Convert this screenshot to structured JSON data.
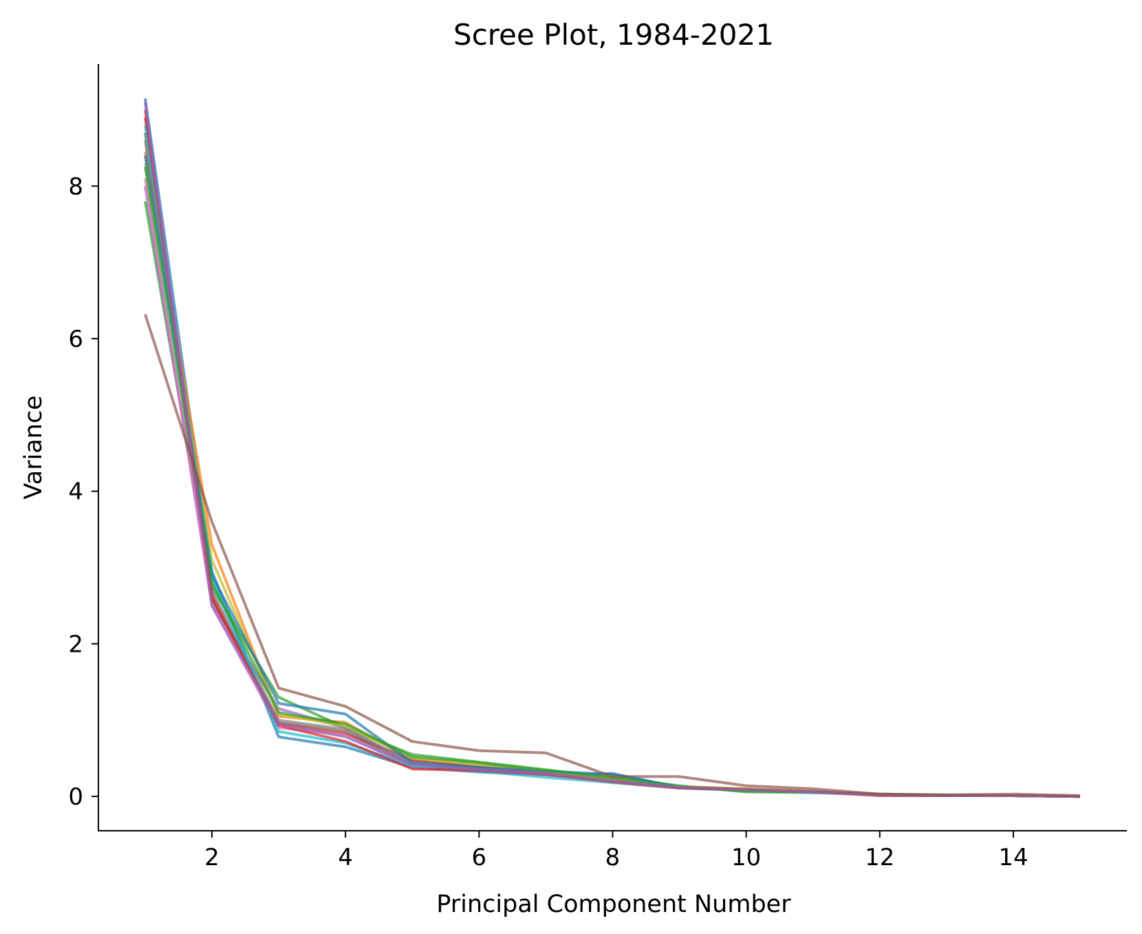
{
  "chart_data": {
    "type": "line",
    "title": "Scree Plot, 1984-2021",
    "xlabel": "Principal Component Number",
    "ylabel": "Variance",
    "x": [
      1,
      2,
      3,
      4,
      5,
      6,
      7,
      8,
      9,
      10,
      11,
      12,
      13,
      14,
      15
    ],
    "xticks": [
      2,
      4,
      6,
      8,
      10,
      12,
      14
    ],
    "yticks": [
      0,
      2,
      4,
      6,
      8
    ],
    "xlim": [
      0.3,
      15.7
    ],
    "ylim": [
      -0.45,
      9.6
    ],
    "grid": false,
    "legend": "none",
    "series": [
      {
        "color": "#1f77b4",
        "values": [
          9.15,
          2.95,
          0.78,
          0.65,
          0.38,
          0.32,
          0.28,
          0.3,
          0.12,
          0.08,
          0.06,
          0.02,
          0.01,
          0.01,
          0.0
        ]
      },
      {
        "color": "#ff7f0e",
        "values": [
          8.45,
          3.3,
          1.05,
          0.97,
          0.47,
          0.4,
          0.33,
          0.22,
          0.13,
          0.1,
          0.07,
          0.02,
          0.01,
          0.01,
          0.0
        ]
      },
      {
        "color": "#2ca02c",
        "values": [
          7.8,
          2.75,
          1.3,
          0.9,
          0.55,
          0.45,
          0.35,
          0.25,
          0.14,
          0.06,
          0.05,
          0.03,
          0.02,
          0.01,
          0.0
        ]
      },
      {
        "color": "#d62728",
        "values": [
          8.9,
          2.65,
          0.95,
          0.82,
          0.48,
          0.38,
          0.3,
          0.2,
          0.12,
          0.09,
          0.06,
          0.02,
          0.01,
          0.01,
          0.0
        ]
      },
      {
        "color": "#9467bd",
        "values": [
          8.0,
          2.55,
          1.15,
          0.9,
          0.42,
          0.36,
          0.3,
          0.21,
          0.12,
          0.09,
          0.06,
          0.02,
          0.01,
          0.01,
          0.0
        ]
      },
      {
        "color": "#8c564b",
        "values": [
          8.7,
          2.6,
          0.97,
          0.85,
          0.4,
          0.35,
          0.3,
          0.2,
          0.11,
          0.08,
          0.06,
          0.02,
          0.01,
          0.01,
          0.0
        ]
      },
      {
        "color": "#e377c2",
        "values": [
          8.1,
          2.5,
          0.9,
          0.8,
          0.38,
          0.33,
          0.28,
          0.2,
          0.12,
          0.09,
          0.06,
          0.02,
          0.01,
          0.01,
          0.0
        ]
      },
      {
        "color": "#7f7f7f",
        "values": [
          8.6,
          2.7,
          1.0,
          0.88,
          0.45,
          0.37,
          0.31,
          0.22,
          0.12,
          0.09,
          0.06,
          0.02,
          0.01,
          0.01,
          0.0
        ]
      },
      {
        "color": "#bcbd22",
        "values": [
          8.3,
          3.1,
          1.08,
          0.92,
          0.5,
          0.42,
          0.33,
          0.23,
          0.13,
          0.1,
          0.07,
          0.02,
          0.01,
          0.01,
          0.0
        ]
      },
      {
        "color": "#17becf",
        "values": [
          8.8,
          2.85,
          0.85,
          0.7,
          0.4,
          0.33,
          0.25,
          0.18,
          0.11,
          0.08,
          0.05,
          0.02,
          0.01,
          0.01,
          0.0
        ]
      },
      {
        "color": "#1f77b4",
        "values": [
          8.4,
          2.9,
          1.22,
          1.08,
          0.44,
          0.38,
          0.33,
          0.29,
          0.12,
          0.09,
          0.06,
          0.02,
          0.01,
          0.01,
          0.0
        ]
      },
      {
        "color": "#2ca02c",
        "values": [
          8.25,
          2.8,
          1.1,
          0.95,
          0.52,
          0.44,
          0.34,
          0.24,
          0.13,
          0.07,
          0.06,
          0.03,
          0.01,
          0.01,
          0.0
        ]
      },
      {
        "color": "#d62728",
        "values": [
          9.0,
          2.6,
          0.93,
          0.72,
          0.36,
          0.34,
          0.29,
          0.19,
          0.11,
          0.09,
          0.06,
          0.01,
          0.01,
          0.01,
          0.0
        ]
      },
      {
        "color": "#9467bd",
        "values": [
          9.1,
          2.5,
          0.95,
          0.78,
          0.42,
          0.35,
          0.3,
          0.2,
          0.12,
          0.09,
          0.06,
          0.02,
          0.01,
          0.01,
          0.0
        ]
      },
      {
        "color": "#8c564b",
        "values": [
          6.32,
          3.6,
          1.42,
          1.18,
          0.72,
          0.6,
          0.57,
          0.26,
          0.26,
          0.14,
          0.1,
          0.03,
          0.02,
          0.03,
          0.01
        ]
      }
    ]
  }
}
